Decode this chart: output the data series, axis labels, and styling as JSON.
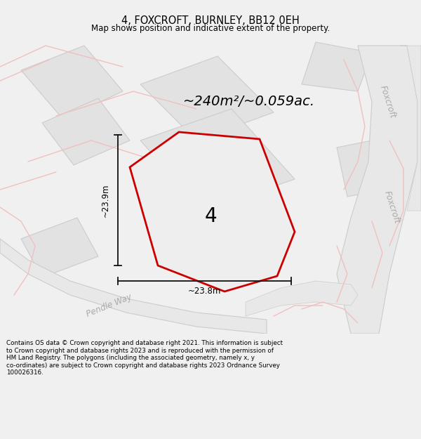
{
  "title": "4, FOXCROFT, BURNLEY, BB12 0EH",
  "subtitle": "Map shows position and indicative extent of the property.",
  "footer": "Contains OS data © Crown copyright and database right 2021. This information is subject\nto Crown copyright and database rights 2023 and is reproduced with the permission of\nHM Land Registry. The polygons (including the associated geometry, namely x, y\nco-ordinates) are subject to Crown copyright and database rights 2023 Ordnance Survey\n100026316.",
  "area_label": "~240m²/~0.059ac.",
  "plot_number": "4",
  "dim_horizontal": "~23.8m",
  "dim_vertical": "~23.9m",
  "road_label_pendle": "Pendle Way",
  "road_label_foxcroft1": "Foxcroft",
  "road_label_foxcroft2": "Foxcroft",
  "bg_color": "#f0f0f0",
  "map_bg": "#ffffff",
  "plot_fill": "#eeeeee",
  "plot_outline": "#cc0000",
  "block_fill": "#e2e2e2",
  "block_edge": "#cccccc",
  "road_pink": "#f0c0c0",
  "road_gray": "#d8d8d8",
  "dim_line_color": "#111111",
  "text_gray": "#aaaaaa",
  "text_dark": "#333333"
}
